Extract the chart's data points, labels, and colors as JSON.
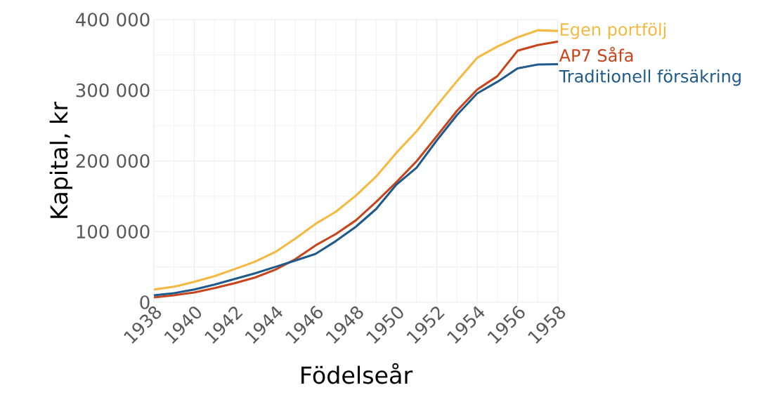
{
  "chart_data": {
    "type": "line",
    "xlabel": "Födelseår",
    "ylabel": "Kapital, kr",
    "x": [
      1938,
      1939,
      1940,
      1941,
      1942,
      1943,
      1944,
      1945,
      1946,
      1947,
      1948,
      1949,
      1950,
      1951,
      1952,
      1953,
      1954,
      1955,
      1956,
      1957,
      1958
    ],
    "series": [
      {
        "name": "Egen portfölj",
        "color": "#f5b942",
        "values": [
          18000,
          22000,
          29000,
          37000,
          47000,
          57500,
          71000,
          90000,
          111000,
          128000,
          151000,
          178000,
          211500,
          242000,
          278000,
          313000,
          346000,
          362000,
          375000,
          385000,
          384000
        ]
      },
      {
        "name": "AP7 Såfa",
        "color": "#c8441a",
        "values": [
          7000,
          10000,
          14000,
          20000,
          27000,
          35000,
          46000,
          61000,
          80500,
          96500,
          116000,
          142000,
          170000,
          199500,
          235000,
          271000,
          301000,
          320000,
          356000,
          364000,
          369000
        ]
      },
      {
        "name": "Traditionell försäkring",
        "color": "#1f5a8c",
        "values": [
          10000,
          13000,
          18000,
          25000,
          33000,
          41000,
          50000,
          59000,
          68500,
          86500,
          107000,
          132000,
          166500,
          190500,
          229000,
          265000,
          295500,
          312000,
          331000,
          336500,
          337000
        ]
      }
    ],
    "xlim": [
      1938,
      1958
    ],
    "xticks": [
      1938,
      1940,
      1942,
      1944,
      1946,
      1948,
      1950,
      1952,
      1954,
      1956,
      1958
    ],
    "ylim": [
      0,
      400000
    ],
    "yticks": [
      0,
      {
        "value": 100000,
        "label": "100 000"
      },
      {
        "value": 200000,
        "label": "200 000"
      },
      {
        "value": 300000,
        "label": "300 000"
      },
      {
        "value": 400000,
        "label": "400 000"
      }
    ],
    "grid": true,
    "marker": "none",
    "line_style": "solid"
  }
}
